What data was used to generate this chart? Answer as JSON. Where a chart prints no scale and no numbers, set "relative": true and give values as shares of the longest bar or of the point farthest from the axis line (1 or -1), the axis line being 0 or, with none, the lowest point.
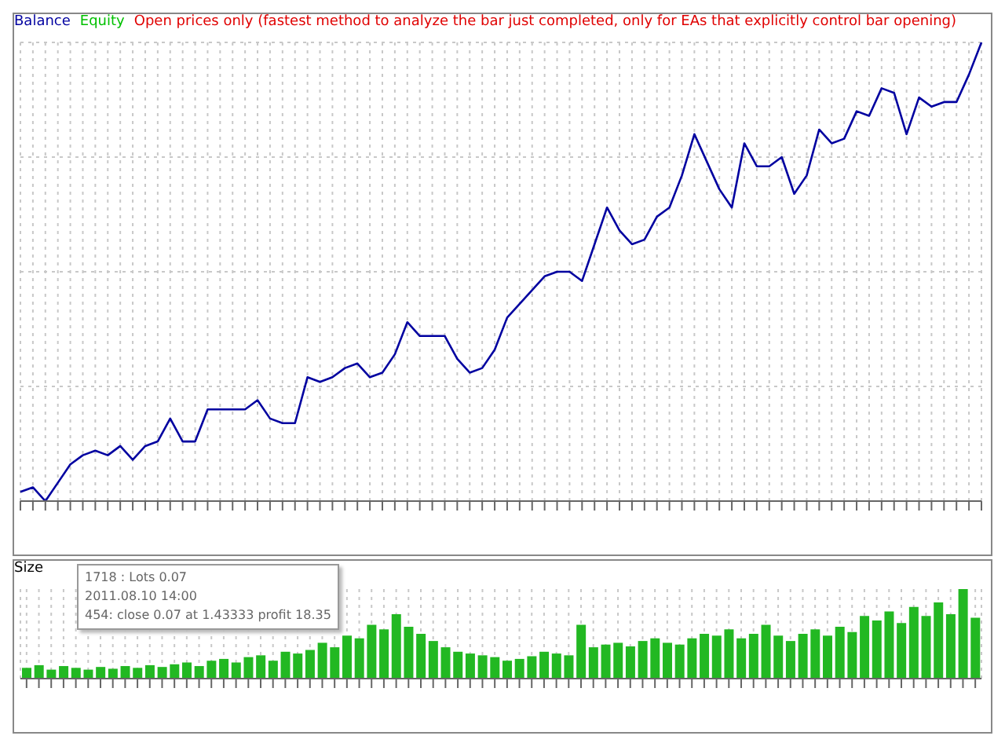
{
  "chart_data": [
    {
      "type": "line",
      "subtitle": "Open prices only (fastest method to analyze the bar just completed, only for EAs that explicitly control bar opening)",
      "relative": true,
      "legend": "top left",
      "grid": true,
      "categories": [
        null,
        null,
        null,
        null,
        null,
        null,
        null,
        null,
        null,
        null,
        null,
        null,
        null,
        null,
        null,
        null,
        null,
        null,
        null,
        null,
        null,
        null,
        null,
        null,
        null,
        null,
        null,
        null,
        null,
        null,
        null,
        null,
        null,
        null,
        null,
        null,
        null,
        null,
        null,
        null,
        null,
        null,
        null,
        null,
        null,
        null,
        null,
        null,
        null,
        null,
        null,
        null,
        null,
        null,
        null,
        null,
        null,
        null,
        null,
        null,
        null,
        null,
        null,
        null,
        null,
        null,
        null,
        null,
        null,
        null,
        null,
        null,
        null,
        null,
        null,
        null,
        null,
        null
      ],
      "series": [
        {
          "name": "Balance",
          "color": "#0000a0",
          "values": [
            0.02,
            0.03,
            0.0,
            0.04,
            0.08,
            0.1,
            0.11,
            0.1,
            0.12,
            0.09,
            0.12,
            0.13,
            0.18,
            0.13,
            0.13,
            0.2,
            0.2,
            0.2,
            0.2,
            0.22,
            0.18,
            0.17,
            0.17,
            0.27,
            0.26,
            0.27,
            0.29,
            0.3,
            0.27,
            0.28,
            0.32,
            0.39,
            0.36,
            0.36,
            0.36,
            0.31,
            0.28,
            0.29,
            0.33,
            0.4,
            0.43,
            0.46,
            0.49,
            0.5,
            0.5,
            0.48,
            0.56,
            0.64,
            0.59,
            0.56,
            0.57,
            0.62,
            0.64,
            0.71,
            0.8,
            0.74,
            0.68,
            0.64,
            0.78,
            0.73,
            0.73,
            0.75,
            0.67,
            0.71,
            0.81,
            0.78,
            0.79,
            0.85,
            0.84,
            0.9,
            0.89,
            0.8,
            0.88,
            0.86,
            0.87,
            0.87,
            0.93,
            1.0
          ]
        },
        {
          "name": "Equity",
          "color": "#00c000",
          "values": [
            null,
            null,
            null,
            null,
            null,
            null,
            null,
            null,
            null,
            null,
            null,
            null,
            null,
            null,
            null,
            null,
            null,
            null,
            null,
            null,
            null,
            null,
            null,
            null,
            null,
            null,
            null,
            null,
            null,
            null,
            null,
            null,
            null,
            null,
            null,
            null,
            null,
            null,
            null,
            null,
            null,
            null,
            null,
            null,
            null,
            null,
            null,
            null,
            null,
            null,
            null,
            null,
            null,
            null,
            null,
            null,
            null,
            null,
            null,
            null,
            null,
            null,
            null,
            null,
            null,
            null,
            null,
            null,
            null,
            null,
            null,
            null,
            null,
            null,
            null,
            null,
            null,
            null
          ]
        }
      ]
    },
    {
      "type": "bar",
      "title": "Size",
      "relative": true,
      "grid": "x",
      "annotations": [
        "1718 : Lots 0.07",
        "2011.08.10 14:00",
        "454: close 0.07 at 1.43333 profit 18.35"
      ],
      "categories": [
        null,
        null,
        null,
        null,
        null,
        null,
        null,
        null,
        null,
        null,
        null,
        null,
        null,
        null,
        null,
        null,
        null,
        null,
        null,
        null,
        null,
        null,
        null,
        null,
        null,
        null,
        null,
        null,
        null,
        null,
        null,
        null,
        null,
        null,
        null,
        null,
        null,
        null,
        null,
        null,
        null,
        null,
        null,
        null,
        null,
        null,
        null,
        null,
        null,
        null,
        null,
        null,
        null,
        null,
        null,
        null,
        null,
        null,
        null,
        null,
        null,
        null,
        null,
        null,
        null,
        null,
        null,
        null,
        null,
        null,
        null,
        null,
        null,
        null,
        null,
        null,
        null,
        null
      ],
      "series": [
        {
          "color": "#22b822",
          "values": [
            0.12,
            0.15,
            0.1,
            0.14,
            0.12,
            0.1,
            0.13,
            0.11,
            0.14,
            0.12,
            0.15,
            0.13,
            0.16,
            0.18,
            0.14,
            0.2,
            0.22,
            0.18,
            0.24,
            0.26,
            0.2,
            0.3,
            0.28,
            0.32,
            0.4,
            0.35,
            0.48,
            0.45,
            0.6,
            0.55,
            0.72,
            0.58,
            0.5,
            0.42,
            0.35,
            0.3,
            0.28,
            0.26,
            0.24,
            0.2,
            0.22,
            0.25,
            0.3,
            0.28,
            0.26,
            0.6,
            0.35,
            0.38,
            0.4,
            0.36,
            0.42,
            0.45,
            0.4,
            0.38,
            0.45,
            0.5,
            0.48,
            0.55,
            0.45,
            0.5,
            0.6,
            0.48,
            0.42,
            0.5,
            0.55,
            0.48,
            0.58,
            0.52,
            0.7,
            0.65,
            0.75,
            0.62,
            0.8,
            0.7,
            0.85,
            0.72,
            1.0,
            0.68
          ]
        }
      ]
    }
  ]
}
